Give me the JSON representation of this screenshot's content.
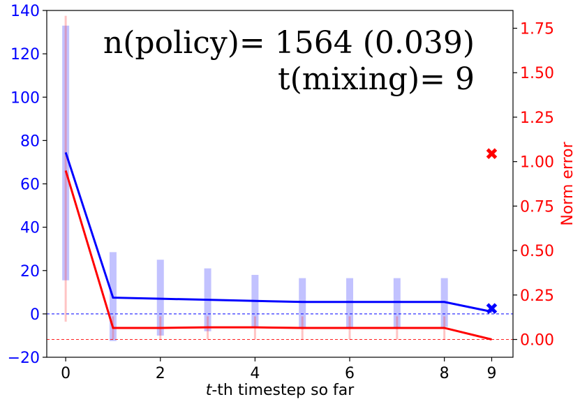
{
  "chart_data": {
    "type": "line",
    "x": [
      0,
      1,
      2,
      3,
      4,
      5,
      6,
      7,
      8,
      9
    ],
    "x_ticks": [
      "0",
      "2",
      "4",
      "6",
      "8",
      "9"
    ],
    "x_tick_values": [
      0,
      2,
      4,
      6,
      8,
      9
    ],
    "xlabel_italic": "t",
    "xlabel_rest": "-th timestep so far",
    "xlim": [
      -0.4,
      9.45
    ],
    "left_axis": {
      "ylim": [
        -20,
        140
      ],
      "ticks": [
        "−20",
        "0",
        "20",
        "40",
        "60",
        "80",
        "100",
        "120",
        "140"
      ],
      "tick_values": [
        -20,
        0,
        20,
        40,
        60,
        80,
        100,
        120,
        140
      ],
      "color": "#0000ff"
    },
    "right_axis": {
      "ylim": [
        -0.1,
        1.85
      ],
      "ticks": [
        "0.00",
        "0.25",
        "0.50",
        "0.75",
        "1.00",
        "1.25",
        "1.50",
        "1.75"
      ],
      "tick_values": [
        0,
        0.25,
        0.5,
        0.75,
        1.0,
        1.25,
        1.5,
        1.75
      ],
      "label": "Norm error",
      "color": "#ff0000"
    },
    "series": [
      {
        "axis": "left",
        "color": "#0000ff",
        "line_x": [
          0,
          1,
          2,
          3,
          4,
          5,
          6,
          7,
          8,
          9
        ],
        "values": [
          74.5,
          7.5,
          7,
          6.5,
          6,
          5.5,
          5.5,
          5.5,
          5.5,
          1
        ],
        "band_low": [
          15.5,
          -12.5,
          -10,
          -8,
          -6.5,
          -6,
          -6,
          -6,
          -6
        ],
        "band_high": [
          133,
          28.5,
          25,
          21,
          18,
          16.5,
          16.5,
          16.5,
          16.5
        ],
        "marker": {
          "x": 9,
          "y": 2.5,
          "shape": "x"
        },
        "hline": 0
      },
      {
        "axis": "right",
        "color": "#ff0000",
        "line_x": [
          0,
          1,
          2,
          3,
          4,
          5,
          6,
          7,
          8,
          9
        ],
        "values": [
          0.95,
          0.065,
          0.065,
          0.068,
          0.068,
          0.065,
          0.065,
          0.065,
          0.065,
          0.0
        ],
        "band_low": [
          0.1,
          0.0,
          0.0,
          0.0,
          0.0,
          0.0,
          0.0,
          0.0,
          0.0
        ],
        "band_high": [
          1.82,
          0.13,
          0.13,
          0.13,
          0.13,
          0.13,
          0.13,
          0.13,
          0.13
        ],
        "marker": {
          "x": 9,
          "y": 1.045,
          "shape": "x"
        },
        "hline": 0.0
      }
    ],
    "annotations": [
      "n(policy)= 1564 (0.039)",
      "t(mixing)= 9"
    ],
    "grid": false
  }
}
